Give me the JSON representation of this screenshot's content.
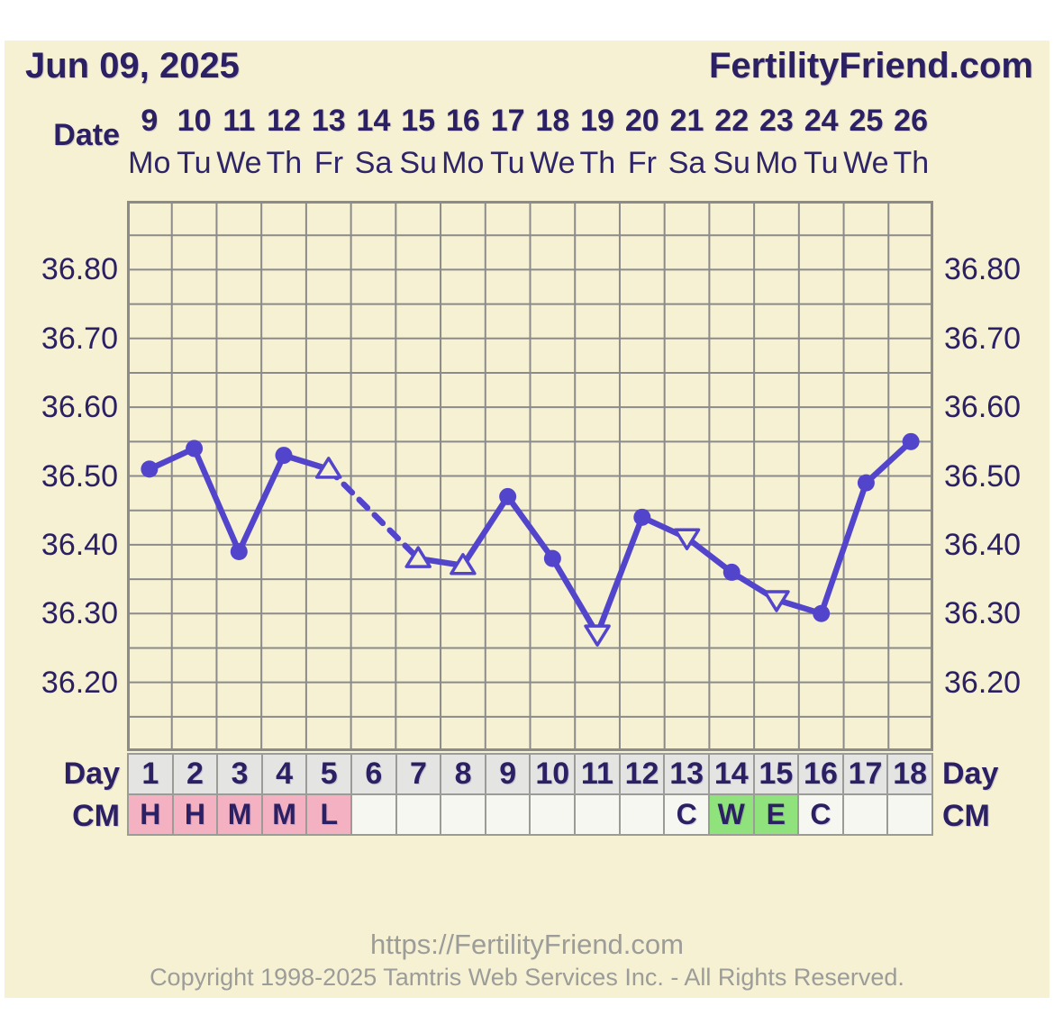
{
  "header": {
    "date": "Jun 09, 2025",
    "site": "FertilityFriend.com"
  },
  "labels": {
    "date": "Date",
    "day": "Day",
    "cm": "CM"
  },
  "date_header": {
    "dates": [
      "9",
      "10",
      "11",
      "12",
      "13",
      "14",
      "15",
      "16",
      "17",
      "18",
      "19",
      "20",
      "21",
      "22",
      "23",
      "24",
      "25",
      "26"
    ],
    "weekdays": [
      "Mo",
      "Tu",
      "We",
      "Th",
      "Fr",
      "Sa",
      "Su",
      "Mo",
      "Tu",
      "We",
      "Th",
      "Fr",
      "Sa",
      "Su",
      "Mo",
      "Tu",
      "We",
      "Th"
    ]
  },
  "chart_data": {
    "type": "line",
    "title": "",
    "xlabel": "",
    "ylabel": "",
    "x_days": [
      1,
      2,
      3,
      4,
      5,
      6,
      7,
      8,
      9,
      10,
      11,
      12,
      13,
      14,
      15,
      16,
      17,
      18
    ],
    "ylim": [
      36.1,
      36.9
    ],
    "grid": true,
    "grid_step": 0.05,
    "y_tick_labels": [
      "36.80",
      "36.70",
      "36.60",
      "36.50",
      "36.40",
      "36.30",
      "36.20"
    ],
    "series": [
      {
        "name": "temperature",
        "points": [
          {
            "day": 1,
            "temp": 36.51,
            "marker": "circle"
          },
          {
            "day": 2,
            "temp": 36.54,
            "marker": "circle"
          },
          {
            "day": 3,
            "temp": 36.39,
            "marker": "circle"
          },
          {
            "day": 4,
            "temp": 36.53,
            "marker": "circle"
          },
          {
            "day": 5,
            "temp": 36.51,
            "marker": "triangle-up"
          },
          {
            "day": 7,
            "temp": 36.38,
            "marker": "triangle-up"
          },
          {
            "day": 8,
            "temp": 36.37,
            "marker": "triangle-up"
          },
          {
            "day": 9,
            "temp": 36.47,
            "marker": "circle"
          },
          {
            "day": 10,
            "temp": 36.38,
            "marker": "circle"
          },
          {
            "day": 11,
            "temp": 36.27,
            "marker": "triangle-down"
          },
          {
            "day": 12,
            "temp": 36.44,
            "marker": "circle"
          },
          {
            "day": 13,
            "temp": 36.41,
            "marker": "triangle-down"
          },
          {
            "day": 14,
            "temp": 36.36,
            "marker": "circle"
          },
          {
            "day": 15,
            "temp": 36.32,
            "marker": "triangle-down"
          },
          {
            "day": 16,
            "temp": 36.3,
            "marker": "circle"
          },
          {
            "day": 17,
            "temp": 36.49,
            "marker": "circle"
          },
          {
            "day": 18,
            "temp": 36.55,
            "marker": "circle"
          }
        ],
        "missing_days": [
          6
        ],
        "dashed_segments_between_days": [
          [
            5,
            7
          ]
        ]
      }
    ]
  },
  "day_row": {
    "days": [
      "1",
      "2",
      "3",
      "4",
      "5",
      "6",
      "7",
      "8",
      "9",
      "10",
      "11",
      "12",
      "13",
      "14",
      "15",
      "16",
      "17",
      "18"
    ]
  },
  "cm_row": {
    "cells": [
      {
        "text": "H",
        "style": "pink"
      },
      {
        "text": "H",
        "style": "pink"
      },
      {
        "text": "M",
        "style": "pink"
      },
      {
        "text": "M",
        "style": "pink"
      },
      {
        "text": "L",
        "style": "pink"
      },
      {
        "text": "",
        "style": "plain"
      },
      {
        "text": "",
        "style": "plain"
      },
      {
        "text": "",
        "style": "plain"
      },
      {
        "text": "",
        "style": "plain"
      },
      {
        "text": "",
        "style": "plain"
      },
      {
        "text": "",
        "style": "plain"
      },
      {
        "text": "",
        "style": "plain"
      },
      {
        "text": "C",
        "style": "plain"
      },
      {
        "text": "W",
        "style": "green"
      },
      {
        "text": "E",
        "style": "green"
      },
      {
        "text": "C",
        "style": "plain"
      },
      {
        "text": "",
        "style": "plain"
      },
      {
        "text": "",
        "style": "plain"
      }
    ]
  },
  "footer": {
    "url": "https://FertilityFriend.com",
    "copyright": "Copyright 1998-2025 Tamtris Web Services Inc. - All Rights Reserved."
  },
  "colors": {
    "panel_bg": "#f6f1d3",
    "navy": "#2a2063",
    "line_purple": "#5345cb",
    "grid_gray": "#8b8b8b",
    "day_cell_bg": "#e4e4e2",
    "cm_pink": "#f3b1c2",
    "cm_green": "#90e27c",
    "cm_plain_bg": "#f7f7f1",
    "cell_border": "#9b9b97",
    "footer_gray": "#9c9c99"
  }
}
